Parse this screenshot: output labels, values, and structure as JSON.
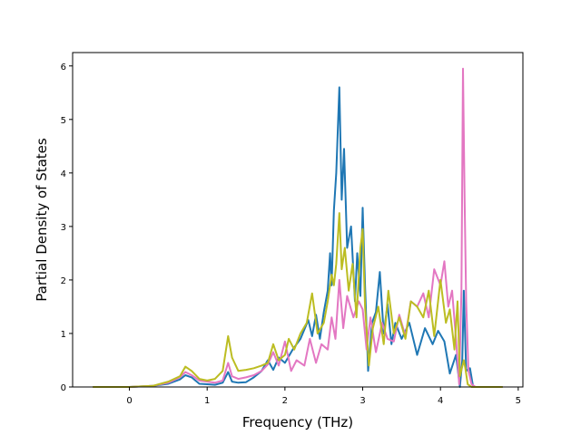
{
  "chart_data": {
    "type": "line",
    "xlabel": "Frequency (THz)",
    "ylabel": "Partial Density of States",
    "xlim": [
      -0.73,
      5.06
    ],
    "ylim": [
      0,
      6.25
    ],
    "xticks": [
      0,
      1,
      2,
      3,
      4,
      5
    ],
    "yticks": [
      0,
      1,
      2,
      3,
      4,
      5,
      6
    ],
    "grid": false,
    "series": [
      {
        "color": "#1f77b4",
        "x": [
          -0.47,
          0.0,
          0.3,
          0.5,
          0.65,
          0.72,
          0.8,
          0.9,
          1.0,
          1.1,
          1.2,
          1.27,
          1.32,
          1.4,
          1.5,
          1.6,
          1.7,
          1.78,
          1.85,
          1.92,
          2.0,
          2.1,
          2.2,
          2.3,
          2.35,
          2.4,
          2.45,
          2.5,
          2.55,
          2.58,
          2.6,
          2.63,
          2.66,
          2.7,
          2.73,
          2.76,
          2.8,
          2.85,
          2.9,
          2.93,
          2.97,
          3.0,
          3.03,
          3.07,
          3.12,
          3.17,
          3.22,
          3.27,
          3.32,
          3.37,
          3.42,
          3.5,
          3.6,
          3.7,
          3.8,
          3.9,
          3.97,
          4.05,
          4.12,
          4.2,
          4.25,
          4.28,
          4.3,
          4.33,
          4.38,
          4.42,
          4.48,
          4.6,
          4.8
        ],
        "y": [
          0,
          0,
          0.02,
          0.06,
          0.14,
          0.22,
          0.18,
          0.06,
          0.05,
          0.04,
          0.08,
          0.28,
          0.1,
          0.08,
          0.09,
          0.18,
          0.3,
          0.5,
          0.32,
          0.55,
          0.45,
          0.7,
          0.9,
          1.25,
          0.95,
          1.35,
          0.9,
          1.4,
          1.8,
          2.5,
          1.9,
          3.3,
          4.0,
          5.6,
          3.5,
          4.45,
          2.6,
          3.0,
          1.6,
          2.5,
          1.7,
          3.35,
          1.9,
          0.3,
          1.2,
          1.4,
          2.15,
          1.0,
          1.55,
          0.8,
          1.2,
          0.9,
          1.2,
          0.6,
          1.1,
          0.8,
          1.05,
          0.85,
          0.25,
          0.6,
          0.0,
          0.5,
          1.8,
          0.3,
          0.35,
          0.0,
          0.0,
          0.0,
          0.0
        ]
      },
      {
        "color": "#e377c2",
        "x": [
          -0.47,
          0.0,
          0.3,
          0.5,
          0.65,
          0.72,
          0.8,
          0.9,
          1.0,
          1.1,
          1.2,
          1.27,
          1.32,
          1.4,
          1.5,
          1.6,
          1.7,
          1.78,
          1.85,
          1.92,
          2.0,
          2.08,
          2.15,
          2.25,
          2.32,
          2.4,
          2.47,
          2.55,
          2.6,
          2.65,
          2.7,
          2.75,
          2.8,
          2.88,
          2.95,
          3.0,
          3.05,
          3.1,
          3.17,
          3.25,
          3.32,
          3.4,
          3.47,
          3.55,
          3.62,
          3.7,
          3.78,
          3.85,
          3.92,
          4.0,
          4.05,
          4.1,
          4.15,
          4.2,
          4.24,
          4.27,
          4.29,
          4.31,
          4.33,
          4.36,
          4.4,
          4.45,
          4.6,
          4.8
        ],
        "y": [
          0,
          0,
          0.02,
          0.08,
          0.18,
          0.28,
          0.22,
          0.12,
          0.1,
          0.08,
          0.12,
          0.45,
          0.2,
          0.15,
          0.18,
          0.22,
          0.3,
          0.42,
          0.65,
          0.4,
          0.85,
          0.3,
          0.5,
          0.4,
          0.9,
          0.45,
          0.8,
          0.7,
          1.3,
          0.9,
          2.0,
          1.1,
          1.7,
          1.3,
          1.6,
          1.45,
          0.7,
          1.3,
          0.65,
          1.2,
          0.9,
          0.85,
          1.35,
          0.95,
          1.6,
          1.5,
          1.75,
          1.3,
          2.2,
          1.9,
          2.35,
          1.5,
          1.8,
          0.9,
          0.05,
          1.8,
          5.95,
          3.5,
          1.6,
          0.3,
          0.05,
          0.0,
          0.0,
          0.0
        ]
      },
      {
        "color": "#bcbd22",
        "x": [
          -0.47,
          0.0,
          0.3,
          0.5,
          0.65,
          0.72,
          0.8,
          0.9,
          1.0,
          1.1,
          1.2,
          1.27,
          1.32,
          1.4,
          1.5,
          1.6,
          1.7,
          1.78,
          1.85,
          1.92,
          2.0,
          2.05,
          2.12,
          2.2,
          2.28,
          2.35,
          2.42,
          2.5,
          2.55,
          2.6,
          2.63,
          2.66,
          2.7,
          2.73,
          2.77,
          2.82,
          2.87,
          2.92,
          2.97,
          3.0,
          3.03,
          3.08,
          3.13,
          3.2,
          3.27,
          3.33,
          3.4,
          3.47,
          3.55,
          3.62,
          3.7,
          3.78,
          3.85,
          3.92,
          4.0,
          4.07,
          4.12,
          4.18,
          4.22,
          4.25,
          4.3,
          4.32,
          4.35,
          4.4,
          4.6,
          4.8
        ],
        "y": [
          0,
          0,
          0.02,
          0.1,
          0.2,
          0.38,
          0.3,
          0.15,
          0.12,
          0.15,
          0.3,
          0.95,
          0.55,
          0.3,
          0.32,
          0.35,
          0.4,
          0.45,
          0.8,
          0.5,
          0.6,
          0.9,
          0.7,
          1.0,
          1.2,
          1.75,
          1.0,
          1.2,
          1.6,
          2.1,
          1.9,
          2.3,
          3.25,
          2.2,
          2.6,
          1.8,
          2.3,
          1.3,
          2.6,
          2.95,
          1.5,
          0.4,
          1.1,
          1.5,
          0.8,
          1.8,
          1.0,
          1.3,
          0.9,
          1.6,
          1.5,
          1.3,
          1.8,
          0.95,
          2.0,
          1.2,
          1.45,
          0.7,
          1.6,
          0.2,
          0.5,
          0.35,
          0.05,
          0.0,
          0.0,
          0.0
        ]
      }
    ]
  }
}
